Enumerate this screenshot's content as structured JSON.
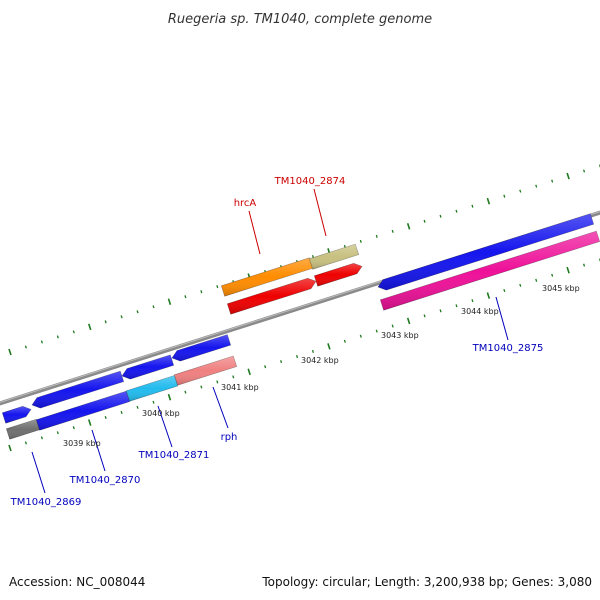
{
  "header": {
    "title": "Ruegeria sp. TM1040, complete genome"
  },
  "footer": {
    "accession": "Accession: NC_008044",
    "topology": "Topology: circular; Length: 3,200,938 bp; Genes: 3,080"
  },
  "kbp_labels": [
    "3039 kbp",
    "3040 kbp",
    "3041 kbp",
    "3042 kbp",
    "3043 kbp",
    "3044 kbp",
    "3045 kbp"
  ],
  "gene_labels": [
    "hrcA",
    "TM1040_2874",
    "TM1040_2875",
    "rph",
    "TM1040_2871",
    "TM1040_2870",
    "TM1040_2869"
  ],
  "colors": {
    "backbone": "#8a8a8a",
    "tick": "#1f7a1f",
    "blue": "#1515ee",
    "red": "#ee0000",
    "orange": "#ff8c00",
    "olive": "#c8c080",
    "cyan": "#22bbee",
    "salmon": "#f08080",
    "magenta": "#ee1199",
    "gray": "#707070"
  }
}
